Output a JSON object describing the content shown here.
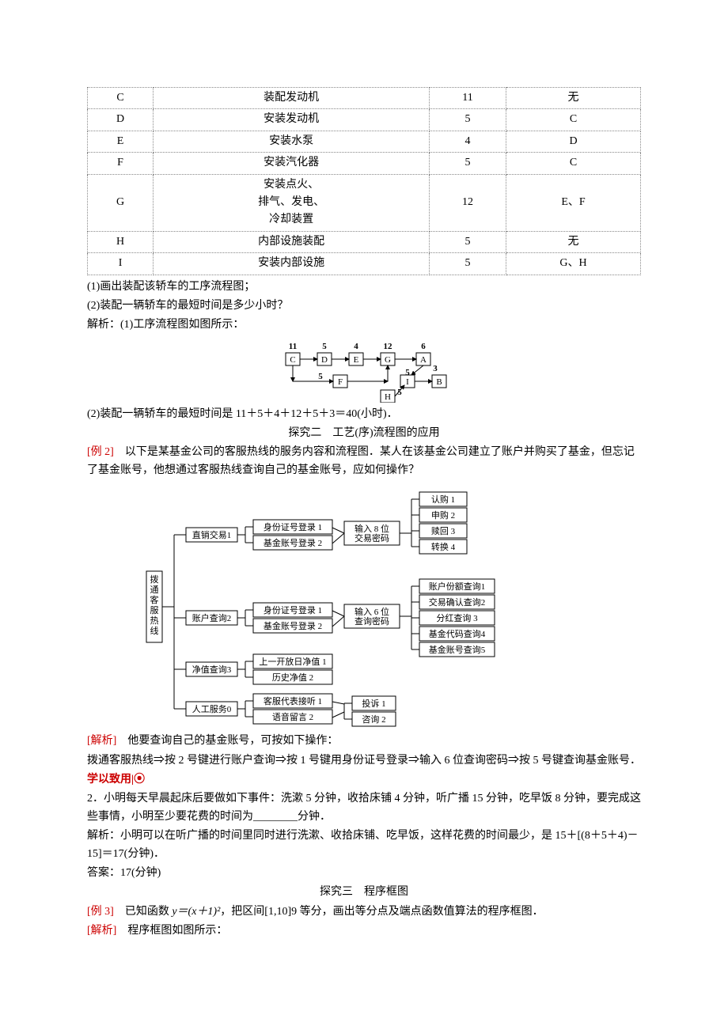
{
  "table": {
    "rows": [
      [
        "C",
        "装配发动机",
        "11",
        "无"
      ],
      [
        "D",
        "安装发动机",
        "5",
        "C"
      ],
      [
        "E",
        "安装水泵",
        "4",
        "D"
      ],
      [
        "F",
        "安装汽化器",
        "5",
        "C"
      ],
      [
        "G",
        "安装点火、\n排气、发电、\n冷却装置",
        "12",
        "E、F"
      ],
      [
        "H",
        "内部设施装配",
        "5",
        "无"
      ],
      [
        "I",
        "安装内部设施",
        "5",
        "G、H"
      ]
    ]
  },
  "q1": "(1)画出装配该轿车的工序流程图；",
  "q2": "(2)装配一辆轿车的最短时间是多少小时？",
  "sol1_label": "解析：",
  "sol1_text": "(1)工序流程图如图所示：",
  "flow1": {
    "topNums": [
      "11",
      "5",
      "4",
      "12",
      "6"
    ],
    "topNodes": [
      "C",
      "D",
      "E",
      "G",
      "A"
    ],
    "midNums": [
      "5",
      "5",
      "3"
    ],
    "bottomNodes": [
      "F",
      "I",
      "B"
    ],
    "hNum": "5",
    "hNode": "H"
  },
  "sol2": "(2)装配一辆轿车的最短时间是 11＋5＋4＋12＋5＋3＝40(小时)．",
  "sec2_title": "探究二　工艺(序)流程图的应用",
  "ex2_label": "[例 2]　",
  "ex2_text": "以下是某基金公司的客服热线的服务内容和流程图．某人在该基金公司建立了账户并购买了基金，但忘记了基金账号，他想通过客服热线查询自己的基金账号，应如何操作？",
  "tree": {
    "root": "拨通客服热线",
    "L1": [
      {
        "id": "直销交易1",
        "children": [
          "身份证号登录 1",
          "基金账号登录 2"
        ],
        "next": "输入 8 位\n交易密码",
        "leaves": [
          "认购 1",
          "申购 2",
          "赎回 3",
          "转换 4"
        ]
      },
      {
        "id": "账户查询2",
        "children": [
          "身份证号登录 1",
          "基金账号登录 2"
        ],
        "next": "输入 6 位\n查询密码",
        "leaves": [
          "账户份额查询1",
          "交易确认查询2",
          "分红查询 3",
          "基金代码查询4",
          "基金账号查询5"
        ]
      },
      {
        "id": "净值查询3",
        "children": [
          "上一开放日净值 1",
          "历史净值 2"
        ]
      },
      {
        "id": "人工服务0",
        "children": [
          "客服代表接听 1",
          "语音留言 2"
        ],
        "next": null,
        "leaves": [
          "投诉 1",
          "咨询 2"
        ]
      }
    ]
  },
  "ans2_label": "[解析]　",
  "ans2_l1": "他要查询自己的基金账号，可按如下操作：",
  "ans2_l2": "拨通客服热线⇒按 2 号键进行账户查询⇒按 1 号键用身份证号登录⇒输入 6 位查询密码⇒按 5 号键查询基金账号．",
  "practice_label": "学以致用|",
  "p2_num": "2．",
  "p2_text1": "小明每天早晨起床后要做如下事件：洗漱 5 分钟，收拾床铺 4 分钟，听广播 15 分钟，吃早饭 8 分钟，要完成这些事情，小明至少要花费的时间为",
  "p2_blank": "________",
  "p2_text2": "分钟．",
  "p2_sol_label": "解析：",
  "p2_sol": "小明可以在听广播的时间里同时进行洗漱、收拾床铺、吃早饭，这样花费的时间最少，是 15＋[(8＋5＋4)－15]＝17(分钟)．",
  "p2_ans_label": "答案：",
  "p2_ans": "17(分钟)",
  "sec3_title": "探究三　程序框图",
  "ex3_label": "[例 3]　",
  "ex3_text1": "已知函数 ",
  "ex3_formula": "y＝(x＋1)²",
  "ex3_text2": "，把区间[1,10]9 等分，画出等分点及端点函数值算法的程序框图．",
  "ans3_label": "[解析]　",
  "ans3_text": "程序框图如图所示："
}
